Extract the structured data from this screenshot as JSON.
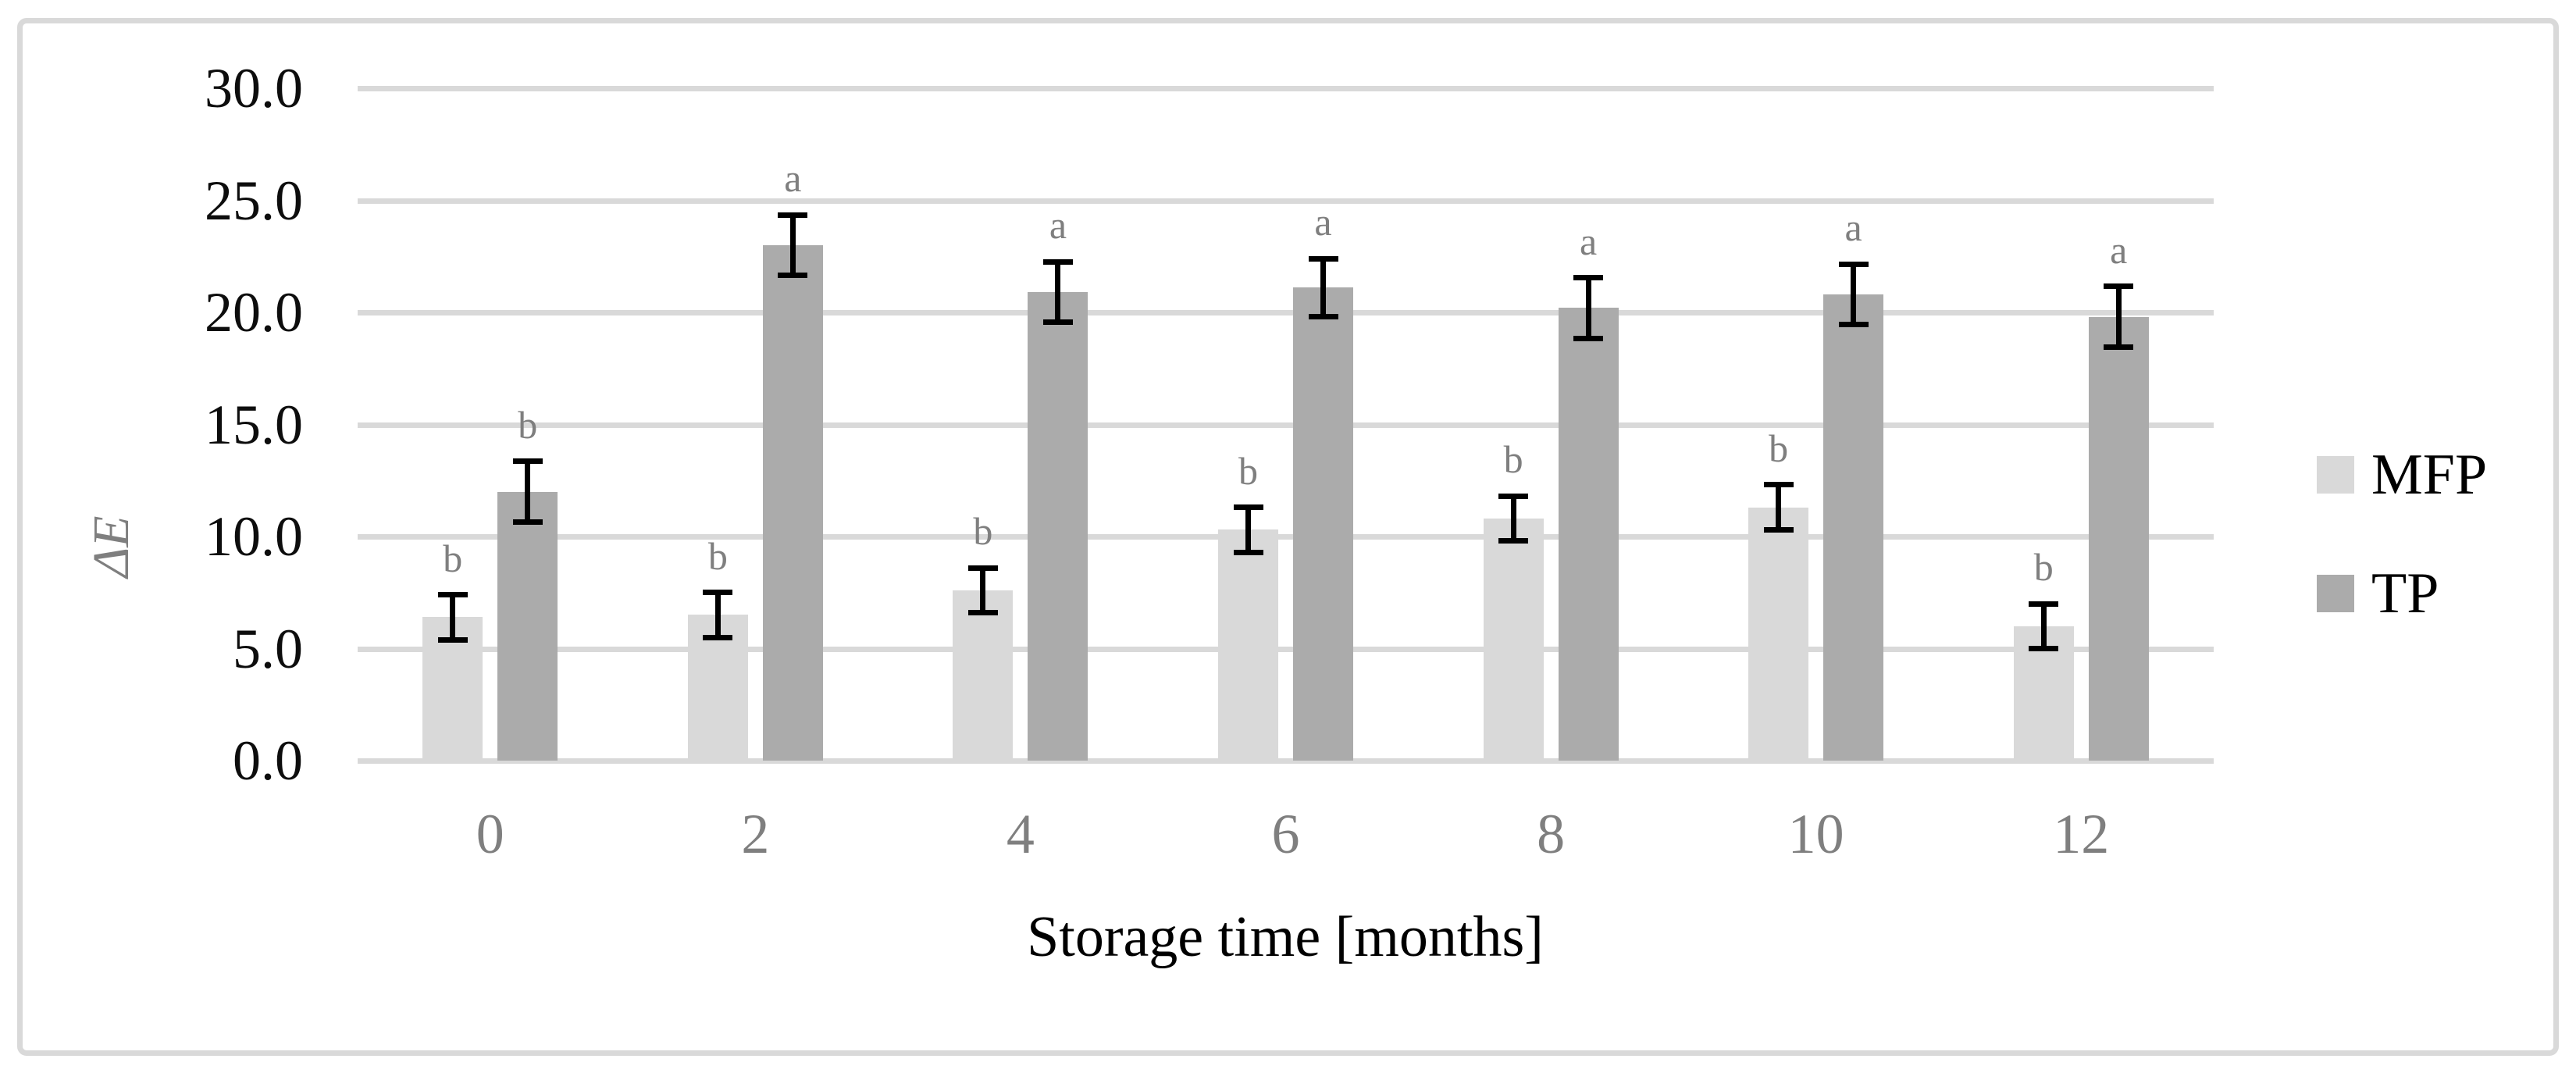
{
  "figure": {
    "background": "#ffffff",
    "border_color": "#d9d9d9"
  },
  "chart_data": {
    "type": "bar",
    "title": "",
    "xlabel": "Storage time [months]",
    "ylabel": "ΔE",
    "categories": [
      "0",
      "2",
      "4",
      "6",
      "8",
      "10",
      "12"
    ],
    "y_axis": {
      "min": 0,
      "max": 30,
      "step": 5,
      "tick_labels": [
        "0.0",
        "5.0",
        "10.0",
        "15.0",
        "20.0",
        "25.0",
        "30.0"
      ]
    },
    "grid": true,
    "legend_position": "right",
    "series": [
      {
        "name": "MFP",
        "color": "#d9d9d9",
        "values": [
          6.4,
          6.5,
          7.6,
          10.3,
          10.8,
          11.3,
          6.0
        ],
        "errors": [
          1.0,
          1.0,
          1.0,
          1.0,
          1.0,
          1.0,
          1.0
        ],
        "letters": [
          "b",
          "b",
          "b",
          "b",
          "b",
          "b",
          "b"
        ]
      },
      {
        "name": "TP",
        "color": "#ababab",
        "values": [
          12.0,
          23.0,
          20.9,
          21.1,
          20.2,
          20.8,
          19.8
        ],
        "errors": [
          1.35,
          1.35,
          1.35,
          1.3,
          1.35,
          1.35,
          1.35
        ],
        "letters": [
          "b",
          "a",
          "a",
          "a",
          "a",
          "a",
          "a"
        ]
      }
    ],
    "colors": {
      "gridline": "#d9d9d9",
      "axis_line": "#d9d9d9",
      "error_bar": "#000000",
      "letter": "#7f7f7f",
      "x_tick": "#7f7f7f",
      "y_tick": "#0d0d0d",
      "x_title": "#000000",
      "y_title": "#7f7f7f"
    }
  }
}
